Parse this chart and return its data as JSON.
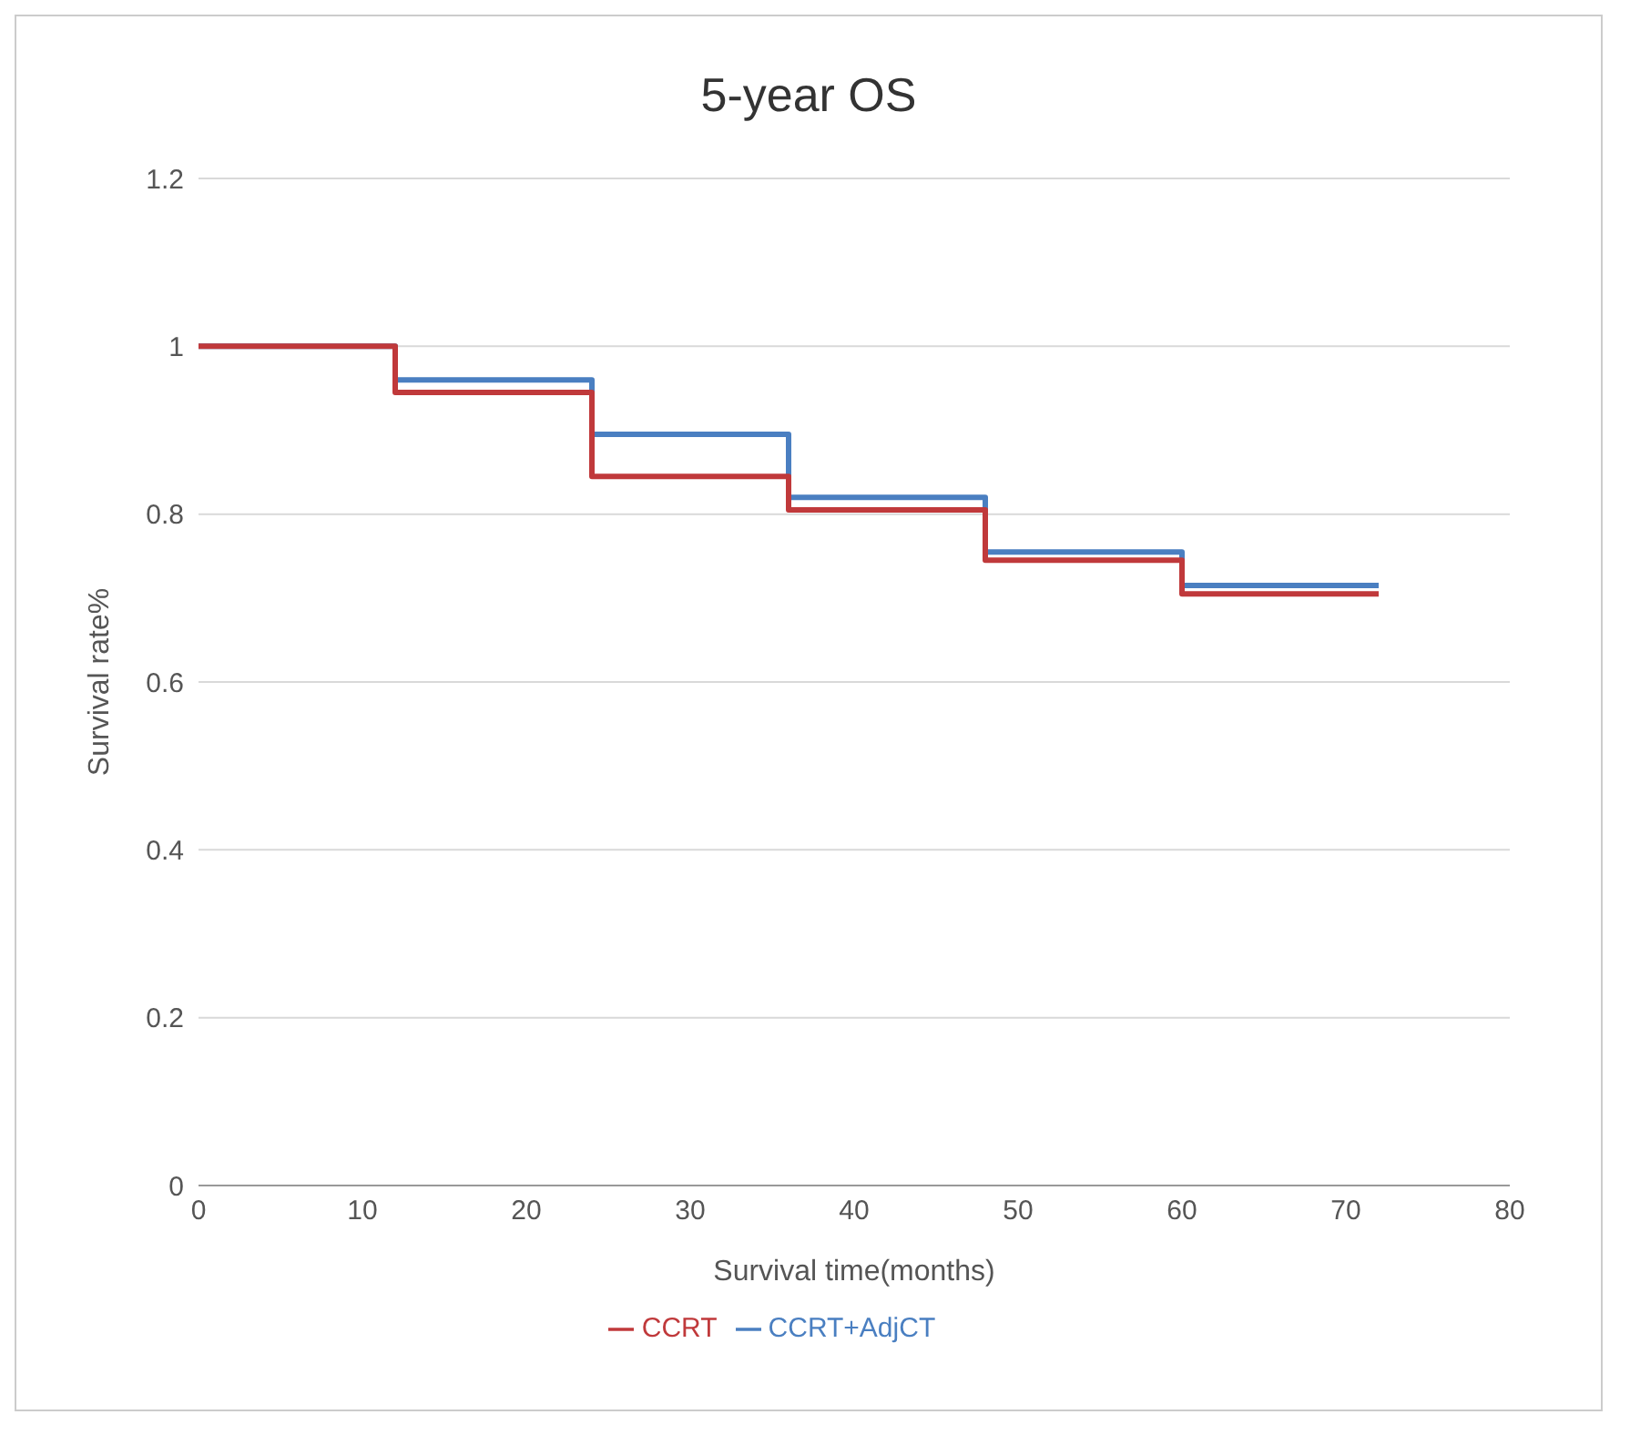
{
  "chart_data": {
    "type": "step",
    "title": "5-year OS",
    "xlabel": "Survival time(months)",
    "ylabel": "Survival rate%",
    "x": [
      0,
      12,
      24,
      36,
      48,
      60,
      72
    ],
    "series": [
      {
        "name": "CCRT+AdjCT",
        "color": "#4a7fc1",
        "values": [
          1,
          0.96,
          0.895,
          0.82,
          0.755,
          0.715,
          0.715
        ]
      },
      {
        "name": "CCRT",
        "color": "#c0393b",
        "values": [
          1,
          0.945,
          0.845,
          0.805,
          0.745,
          0.705,
          0.705
        ]
      }
    ],
    "xlim": [
      0,
      80
    ],
    "xticks": [
      0,
      10,
      20,
      30,
      40,
      50,
      60,
      70,
      80
    ],
    "ylim": [
      0,
      1.2
    ],
    "yticks": [
      0,
      0.2,
      0.4,
      0.6,
      0.8,
      1,
      1.2
    ],
    "grid": "y",
    "legend": "bottom",
    "marker": "none",
    "line_style": "solid"
  }
}
